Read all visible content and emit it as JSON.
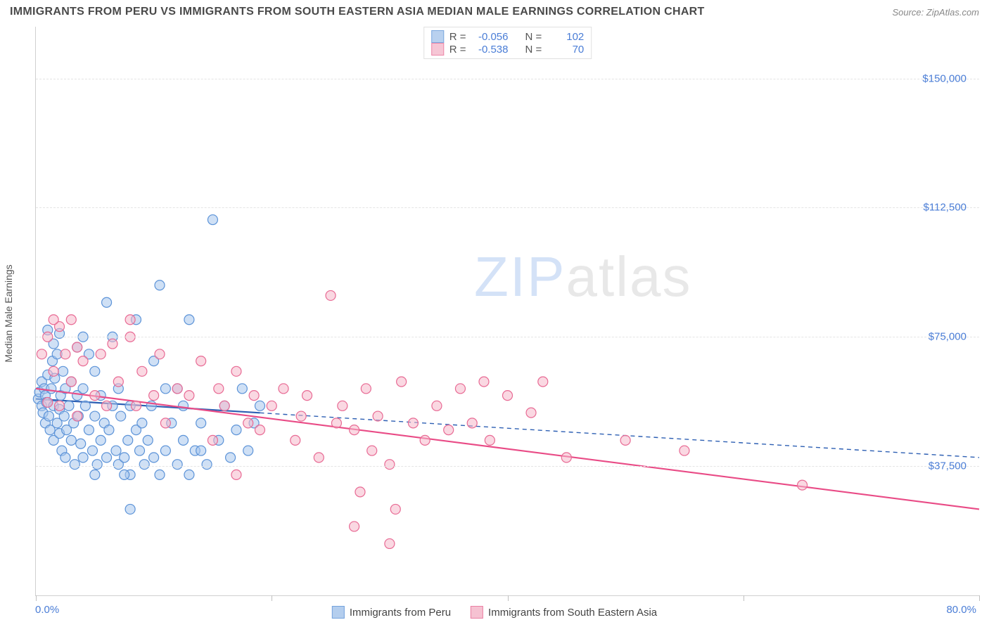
{
  "title": "IMMIGRANTS FROM PERU VS IMMIGRANTS FROM SOUTH EASTERN ASIA MEDIAN MALE EARNINGS CORRELATION CHART",
  "source": "Source: ZipAtlas.com",
  "watermark_a": "ZIP",
  "watermark_b": "atlas",
  "chart": {
    "type": "scatter",
    "background_color": "#ffffff",
    "grid_color": "#e4e4e4",
    "border_color": "#d0d0d0",
    "ylabel": "Median Male Earnings",
    "ylabel_fontsize": 14,
    "xlim": [
      0,
      80
    ],
    "ylim": [
      0,
      165000
    ],
    "xtick_positions": [
      0,
      20,
      40,
      60,
      80
    ],
    "xtick_labels_shown": {
      "0": "0.0%",
      "80": "80.0%"
    },
    "ytick_positions": [
      37500,
      75000,
      112500,
      150000
    ],
    "ytick_labels": [
      "$37,500",
      "$75,000",
      "$112,500",
      "$150,000"
    ],
    "tick_label_color": "#4a7dd6",
    "marker_radius": 7,
    "marker_stroke_width": 1.2,
    "series": [
      {
        "name": "Immigrants from Peru",
        "fill_color": "#a8c6ec",
        "stroke_color": "#5c93d8",
        "fill_opacity": 0.55,
        "r_value": "-0.056",
        "n_value": "102",
        "trend": {
          "x1": 0,
          "y1": 57000,
          "x2": 80,
          "y2": 40000,
          "solid_until_x": 19,
          "color": "#2d5fb3",
          "width": 2.2
        },
        "points": [
          [
            0.2,
            57000
          ],
          [
            0.3,
            59000
          ],
          [
            0.5,
            55000
          ],
          [
            0.5,
            62000
          ],
          [
            0.6,
            53000
          ],
          [
            0.7,
            60000
          ],
          [
            0.8,
            50000
          ],
          [
            0.8,
            58000
          ],
          [
            0.9,
            56000
          ],
          [
            1.0,
            64000
          ],
          [
            1.0,
            77000
          ],
          [
            1.1,
            52000
          ],
          [
            1.2,
            48000
          ],
          [
            1.3,
            60000
          ],
          [
            1.4,
            68000
          ],
          [
            1.5,
            55000
          ],
          [
            1.5,
            45000
          ],
          [
            1.6,
            63000
          ],
          [
            1.8,
            50000
          ],
          [
            1.8,
            70000
          ],
          [
            2.0,
            54000
          ],
          [
            2.0,
            47000
          ],
          [
            2.1,
            58000
          ],
          [
            2.2,
            42000
          ],
          [
            2.3,
            65000
          ],
          [
            2.4,
            52000
          ],
          [
            2.5,
            40000
          ],
          [
            2.5,
            60000
          ],
          [
            2.6,
            48000
          ],
          [
            2.8,
            55000
          ],
          [
            3.0,
            45000
          ],
          [
            3.0,
            62000
          ],
          [
            3.2,
            50000
          ],
          [
            3.3,
            38000
          ],
          [
            3.5,
            58000
          ],
          [
            3.6,
            52000
          ],
          [
            3.8,
            44000
          ],
          [
            4.0,
            60000
          ],
          [
            4.0,
            40000
          ],
          [
            4.2,
            55000
          ],
          [
            4.5,
            48000
          ],
          [
            4.5,
            70000
          ],
          [
            4.8,
            42000
          ],
          [
            5.0,
            52000
          ],
          [
            5.0,
            65000
          ],
          [
            5.2,
            38000
          ],
          [
            5.5,
            45000
          ],
          [
            5.5,
            58000
          ],
          [
            5.8,
            50000
          ],
          [
            6.0,
            40000
          ],
          [
            6.0,
            85000
          ],
          [
            6.2,
            48000
          ],
          [
            6.5,
            55000
          ],
          [
            6.8,
            42000
          ],
          [
            7.0,
            38000
          ],
          [
            7.0,
            60000
          ],
          [
            7.2,
            52000
          ],
          [
            7.5,
            40000
          ],
          [
            7.8,
            45000
          ],
          [
            8.0,
            55000
          ],
          [
            8.0,
            35000
          ],
          [
            8.5,
            48000
          ],
          [
            8.5,
            80000
          ],
          [
            8.8,
            42000
          ],
          [
            9.0,
            50000
          ],
          [
            9.2,
            38000
          ],
          [
            9.5,
            45000
          ],
          [
            9.8,
            55000
          ],
          [
            10.0,
            40000
          ],
          [
            10.0,
            68000
          ],
          [
            10.5,
            35000
          ],
          [
            10.5,
            90000
          ],
          [
            11.0,
            42000
          ],
          [
            11.5,
            50000
          ],
          [
            12.0,
            38000
          ],
          [
            12.0,
            60000
          ],
          [
            12.5,
            45000
          ],
          [
            13.0,
            35000
          ],
          [
            13.0,
            80000
          ],
          [
            13.5,
            42000
          ],
          [
            14.0,
            50000
          ],
          [
            14.5,
            38000
          ],
          [
            15.0,
            109000
          ],
          [
            15.5,
            45000
          ],
          [
            16.0,
            55000
          ],
          [
            16.5,
            40000
          ],
          [
            17.0,
            48000
          ],
          [
            17.5,
            60000
          ],
          [
            18.0,
            42000
          ],
          [
            18.5,
            50000
          ],
          [
            19.0,
            55000
          ],
          [
            8.0,
            25000
          ],
          [
            11.0,
            60000
          ],
          [
            4.0,
            75000
          ],
          [
            2.0,
            76000
          ],
          [
            1.5,
            73000
          ],
          [
            6.5,
            75000
          ],
          [
            3.5,
            72000
          ],
          [
            5.0,
            35000
          ],
          [
            7.5,
            35000
          ],
          [
            12.5,
            55000
          ],
          [
            14.0,
            42000
          ]
        ]
      },
      {
        "name": "Immigrants from South Eastern Asia",
        "fill_color": "#f5b8cb",
        "stroke_color": "#e86a94",
        "fill_opacity": 0.55,
        "r_value": "-0.538",
        "n_value": "70",
        "trend": {
          "x1": 0,
          "y1": 60000,
          "x2": 80,
          "y2": 25000,
          "solid_until_x": 80,
          "color": "#e94b86",
          "width": 2.2
        },
        "points": [
          [
            0.5,
            70000
          ],
          [
            1.0,
            75000
          ],
          [
            1.0,
            56000
          ],
          [
            1.5,
            65000
          ],
          [
            2.0,
            78000
          ],
          [
            2.0,
            55000
          ],
          [
            2.5,
            70000
          ],
          [
            3.0,
            62000
          ],
          [
            3.5,
            72000
          ],
          [
            3.5,
            52000
          ],
          [
            4.0,
            68000
          ],
          [
            5.0,
            58000
          ],
          [
            5.5,
            70000
          ],
          [
            6.0,
            55000
          ],
          [
            6.5,
            73000
          ],
          [
            7.0,
            62000
          ],
          [
            8.0,
            75000
          ],
          [
            8.5,
            55000
          ],
          [
            9.0,
            65000
          ],
          [
            10.0,
            58000
          ],
          [
            10.5,
            70000
          ],
          [
            11.0,
            50000
          ],
          [
            12.0,
            60000
          ],
          [
            13.0,
            58000
          ],
          [
            14.0,
            68000
          ],
          [
            15.0,
            45000
          ],
          [
            15.5,
            60000
          ],
          [
            16.0,
            55000
          ],
          [
            17.0,
            65000
          ],
          [
            18.0,
            50000
          ],
          [
            18.5,
            58000
          ],
          [
            19.0,
            48000
          ],
          [
            20.0,
            55000
          ],
          [
            21.0,
            60000
          ],
          [
            22.0,
            45000
          ],
          [
            22.5,
            52000
          ],
          [
            23.0,
            58000
          ],
          [
            24.0,
            40000
          ],
          [
            25.0,
            87000
          ],
          [
            25.5,
            50000
          ],
          [
            26.0,
            55000
          ],
          [
            27.0,
            48000
          ],
          [
            27.5,
            30000
          ],
          [
            28.0,
            60000
          ],
          [
            28.5,
            42000
          ],
          [
            29.0,
            52000
          ],
          [
            30.0,
            38000
          ],
          [
            30.5,
            25000
          ],
          [
            31.0,
            62000
          ],
          [
            32.0,
            50000
          ],
          [
            33.0,
            45000
          ],
          [
            34.0,
            55000
          ],
          [
            35.0,
            48000
          ],
          [
            36.0,
            60000
          ],
          [
            37.0,
            50000
          ],
          [
            38.0,
            62000
          ],
          [
            38.5,
            45000
          ],
          [
            40.0,
            58000
          ],
          [
            42.0,
            53000
          ],
          [
            43.0,
            62000
          ],
          [
            45.0,
            40000
          ],
          [
            27.0,
            20000
          ],
          [
            50.0,
            45000
          ],
          [
            55.0,
            42000
          ],
          [
            17.0,
            35000
          ],
          [
            3.0,
            80000
          ],
          [
            1.5,
            80000
          ],
          [
            8.0,
            80000
          ],
          [
            65.0,
            32000
          ],
          [
            30.0,
            15000
          ]
        ]
      }
    ]
  },
  "legend_labels": {
    "r_prefix": "R =",
    "n_prefix": "N ="
  }
}
